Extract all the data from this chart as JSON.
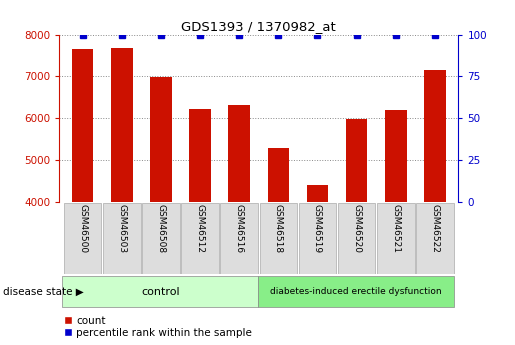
{
  "title": "GDS1393 / 1370982_at",
  "samples": [
    "GSM46500",
    "GSM46503",
    "GSM46508",
    "GSM46512",
    "GSM46516",
    "GSM46518",
    "GSM46519",
    "GSM46520",
    "GSM46521",
    "GSM46522"
  ],
  "counts": [
    7650,
    7680,
    6980,
    6230,
    6320,
    5280,
    4400,
    5970,
    6190,
    7160
  ],
  "percentile_ranks": [
    100,
    100,
    100,
    100,
    100,
    100,
    100,
    100,
    100,
    100
  ],
  "ylim_left": [
    4000,
    8000
  ],
  "ylim_right": [
    0,
    100
  ],
  "yticks_left": [
    4000,
    5000,
    6000,
    7000,
    8000
  ],
  "yticks_right": [
    0,
    25,
    50,
    75,
    100
  ],
  "bar_color": "#cc1100",
  "percentile_color": "#0000cc",
  "control_samples": 5,
  "disease_samples": 5,
  "control_label": "control",
  "disease_label": "diabetes-induced erectile dysfunction",
  "disease_state_label": "disease state",
  "legend_count_label": "count",
  "legend_percentile_label": "percentile rank within the sample",
  "control_color": "#ccffcc",
  "disease_color": "#88ee88",
  "xlabel_box_color": "#dddddd",
  "grid_color": "#888888",
  "left_tick_color": "#cc1100",
  "right_tick_color": "#0000cc",
  "bar_width": 0.55
}
